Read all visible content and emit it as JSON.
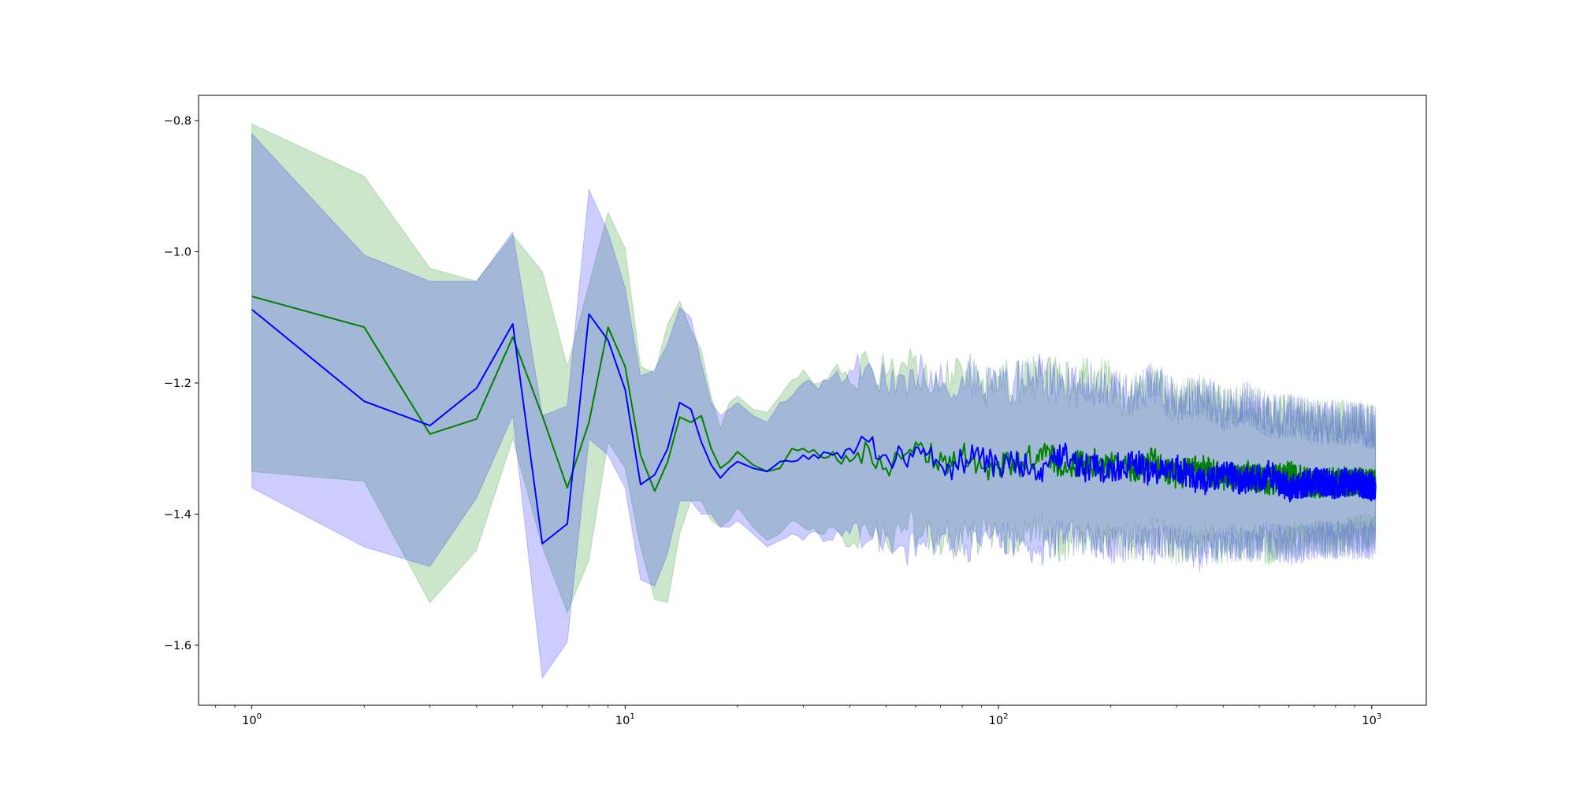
{
  "chart_data": {
    "type": "line",
    "title": "",
    "xlabel": "",
    "ylabel": "",
    "xscale": "log",
    "xlim": [
      0.72,
      1400
    ],
    "ylim": [
      -1.6915,
      -0.7615
    ],
    "grid": false,
    "legend": false,
    "x_tick_values": [
      1,
      10,
      100,
      1000
    ],
    "x_tick_labels": [
      {
        "base": "10",
        "exp": "0"
      },
      {
        "base": "10",
        "exp": "1"
      },
      {
        "base": "10",
        "exp": "2"
      },
      {
        "base": "10",
        "exp": "3"
      }
    ],
    "y_tick_values": [
      -0.8,
      -1.0,
      -1.2,
      -1.4,
      -1.6
    ],
    "y_tick_labels": [
      "−0.8",
      "−1.0",
      "−1.2",
      "−1.4",
      "−1.6"
    ],
    "series": [
      {
        "color": "#008000",
        "band_color": "#008000",
        "band_opacity": 0.2,
        "x": [
          1,
          2,
          3,
          4,
          5,
          6,
          7,
          8,
          9,
          10,
          11,
          12,
          13,
          14,
          15,
          16,
          17,
          18,
          19,
          20,
          22,
          24,
          26,
          28,
          30,
          33,
          36,
          40,
          45,
          50,
          56,
          63,
          71,
          80,
          90,
          100,
          115,
          130,
          150,
          170,
          200,
          230,
          260,
          300,
          350,
          400,
          460,
          530,
          600,
          700,
          800,
          900,
          1024
        ],
        "y": [
          -1.068,
          -1.115,
          -1.278,
          -1.255,
          -1.13,
          -1.25,
          -1.36,
          -1.26,
          -1.115,
          -1.175,
          -1.31,
          -1.365,
          -1.32,
          -1.252,
          -1.26,
          -1.25,
          -1.3,
          -1.33,
          -1.32,
          -1.305,
          -1.325,
          -1.335,
          -1.33,
          -1.3,
          -1.3,
          -1.31,
          -1.305,
          -1.32,
          -1.3,
          -1.33,
          -1.31,
          -1.3,
          -1.32,
          -1.31,
          -1.33,
          -1.32,
          -1.325,
          -1.3,
          -1.33,
          -1.32,
          -1.325,
          -1.33,
          -1.32,
          -1.34,
          -1.33,
          -1.345,
          -1.34,
          -1.35,
          -1.34,
          -1.355,
          -1.35,
          -1.35,
          -1.355
        ],
        "lower": [
          -1.335,
          -1.35,
          -1.535,
          -1.455,
          -1.285,
          -1.45,
          -1.55,
          -1.47,
          -1.29,
          -1.33,
          -1.45,
          -1.53,
          -1.535,
          -1.43,
          -1.38,
          -1.38,
          -1.41,
          -1.42,
          -1.41,
          -1.39,
          -1.42,
          -1.44,
          -1.43,
          -1.41,
          -1.42,
          -1.43,
          -1.42,
          -1.45,
          -1.43,
          -1.44,
          -1.42,
          -1.43,
          -1.45,
          -1.44,
          -1.43,
          -1.43,
          -1.44,
          -1.42,
          -1.45,
          -1.43,
          -1.44,
          -1.45,
          -1.43,
          -1.45,
          -1.44,
          -1.45,
          -1.44,
          -1.45,
          -1.44,
          -1.44,
          -1.44,
          -1.43,
          -1.43
        ],
        "upper": [
          -0.805,
          -0.885,
          -1.025,
          -1.045,
          -0.975,
          -1.03,
          -1.175,
          -1.05,
          -0.94,
          -0.995,
          -1.175,
          -1.185,
          -1.11,
          -1.075,
          -1.12,
          -1.15,
          -1.22,
          -1.27,
          -1.23,
          -1.22,
          -1.24,
          -1.245,
          -1.22,
          -1.195,
          -1.18,
          -1.2,
          -1.18,
          -1.2,
          -1.17,
          -1.19,
          -1.17,
          -1.18,
          -1.2,
          -1.18,
          -1.2,
          -1.19,
          -1.2,
          -1.18,
          -1.2,
          -1.19,
          -1.2,
          -1.22,
          -1.2,
          -1.23,
          -1.22,
          -1.24,
          -1.23,
          -1.25,
          -1.25,
          -1.26,
          -1.26,
          -1.26,
          -1.27
        ]
      },
      {
        "color": "#0000ff",
        "band_color": "#0000ff",
        "band_opacity": 0.2,
        "x": [
          1,
          2,
          3,
          4,
          5,
          6,
          7,
          8,
          9,
          10,
          11,
          12,
          13,
          14,
          15,
          16,
          17,
          18,
          19,
          20,
          22,
          24,
          26,
          28,
          30,
          33,
          36,
          40,
          45,
          50,
          56,
          63,
          71,
          80,
          90,
          100,
          115,
          130,
          150,
          170,
          200,
          230,
          260,
          300,
          350,
          400,
          460,
          530,
          600,
          700,
          800,
          900,
          1024
        ],
        "y": [
          -1.088,
          -1.228,
          -1.265,
          -1.208,
          -1.11,
          -1.445,
          -1.415,
          -1.095,
          -1.135,
          -1.21,
          -1.355,
          -1.34,
          -1.3,
          -1.23,
          -1.24,
          -1.29,
          -1.325,
          -1.345,
          -1.33,
          -1.32,
          -1.33,
          -1.335,
          -1.32,
          -1.32,
          -1.31,
          -1.315,
          -1.31,
          -1.3,
          -1.29,
          -1.31,
          -1.32,
          -1.3,
          -1.33,
          -1.32,
          -1.31,
          -1.33,
          -1.32,
          -1.33,
          -1.31,
          -1.33,
          -1.33,
          -1.32,
          -1.34,
          -1.33,
          -1.35,
          -1.34,
          -1.35,
          -1.34,
          -1.36,
          -1.35,
          -1.355,
          -1.35,
          -1.36
        ],
        "lower": [
          -1.36,
          -1.45,
          -1.48,
          -1.375,
          -1.25,
          -1.65,
          -1.595,
          -1.285,
          -1.31,
          -1.36,
          -1.5,
          -1.51,
          -1.46,
          -1.38,
          -1.38,
          -1.4,
          -1.4,
          -1.42,
          -1.42,
          -1.41,
          -1.43,
          -1.45,
          -1.44,
          -1.43,
          -1.44,
          -1.43,
          -1.44,
          -1.43,
          -1.44,
          -1.43,
          -1.45,
          -1.44,
          -1.43,
          -1.44,
          -1.45,
          -1.43,
          -1.44,
          -1.45,
          -1.43,
          -1.44,
          -1.45,
          -1.44,
          -1.45,
          -1.44,
          -1.46,
          -1.44,
          -1.45,
          -1.44,
          -1.45,
          -1.44,
          -1.44,
          -1.44,
          -1.44
        ],
        "upper": [
          -0.82,
          -1.005,
          -1.045,
          -1.045,
          -0.97,
          -1.25,
          -1.235,
          -0.905,
          -0.97,
          -1.055,
          -1.19,
          -1.18,
          -1.14,
          -1.085,
          -1.1,
          -1.17,
          -1.23,
          -1.25,
          -1.24,
          -1.23,
          -1.25,
          -1.26,
          -1.23,
          -1.22,
          -1.2,
          -1.21,
          -1.19,
          -1.18,
          -1.17,
          -1.2,
          -1.19,
          -1.18,
          -1.2,
          -1.19,
          -1.2,
          -1.21,
          -1.2,
          -1.19,
          -1.21,
          -1.2,
          -1.21,
          -1.22,
          -1.2,
          -1.23,
          -1.22,
          -1.24,
          -1.23,
          -1.25,
          -1.25,
          -1.26,
          -1.26,
          -1.26,
          -1.27
        ]
      }
    ]
  }
}
